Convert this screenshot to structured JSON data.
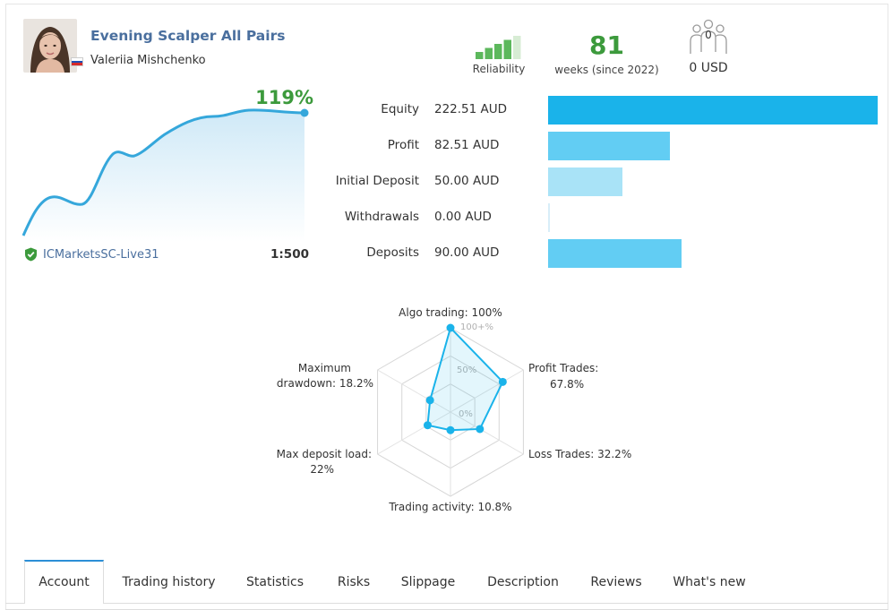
{
  "signal": {
    "title": "Evening Scalper All Pairs",
    "author": "Valeriia Mishchenko",
    "flag": "russia-flag"
  },
  "reliability": {
    "label": "Reliability",
    "filled_bars": 4,
    "total_bars": 5,
    "bar_color": "#5cb85c"
  },
  "weeks": {
    "value": "81",
    "label": "weeks (since 2022)"
  },
  "subscribers": {
    "count": "0",
    "value": "0 USD",
    "icon": "subscribers-icon"
  },
  "growth": {
    "percent": "119%",
    "broker": "ICMarketsSC-Live31",
    "leverage": "1:500",
    "line_color": "#35a7db"
  },
  "finance": {
    "rows": [
      {
        "label": "Equity",
        "value": "222.51 AUD",
        "amount": 222.51,
        "color": "#1ab3ea"
      },
      {
        "label": "Profit",
        "value": "82.51 AUD",
        "amount": 82.51,
        "color": "#62cdf3"
      },
      {
        "label": "Initial Deposit",
        "value": "50.00 AUD",
        "amount": 50.0,
        "color": "#a9e3f7"
      },
      {
        "label": "Withdrawals",
        "value": "0.00 AUD",
        "amount": 0.0,
        "color": "#a9e3f7"
      },
      {
        "label": "Deposits",
        "value": "90.00 AUD",
        "amount": 90.0,
        "color": "#62cdf3"
      }
    ]
  },
  "radar": {
    "grid_labels": [
      "100+%",
      "50%",
      "0%"
    ],
    "axes": [
      {
        "label": "Algo trading: 100%",
        "value": 100
      },
      {
        "label": "Profit Trades: 67.8%",
        "value": 67.8
      },
      {
        "label": "Loss Trades: 32.2%",
        "value": 32.2
      },
      {
        "label": "Trading activity: 10.8%",
        "value": 10.8
      },
      {
        "label": "Max deposit load: 22%",
        "value": 22
      },
      {
        "label": "Maximum drawdown: 18.2%",
        "value": 18.2
      }
    ],
    "label_lines": {
      "algo": "Algo trading: 100%",
      "profit_1": "Profit Trades:",
      "profit_2": "67.8%",
      "loss": "Loss Trades: 32.2%",
      "activity": "Trading activity: 10.8%",
      "load_1": "Max deposit load:",
      "load_2": "22%",
      "dd_1": "Maximum",
      "dd_2": "drawdown: 18.2%"
    },
    "color": "#1ab3ea"
  },
  "tabs": [
    {
      "label": "Account",
      "active": true
    },
    {
      "label": "Trading history"
    },
    {
      "label": "Statistics"
    },
    {
      "label": "Risks"
    },
    {
      "label": "Slippage"
    },
    {
      "label": "Description"
    },
    {
      "label": "Reviews"
    },
    {
      "label": "What's new"
    }
  ]
}
